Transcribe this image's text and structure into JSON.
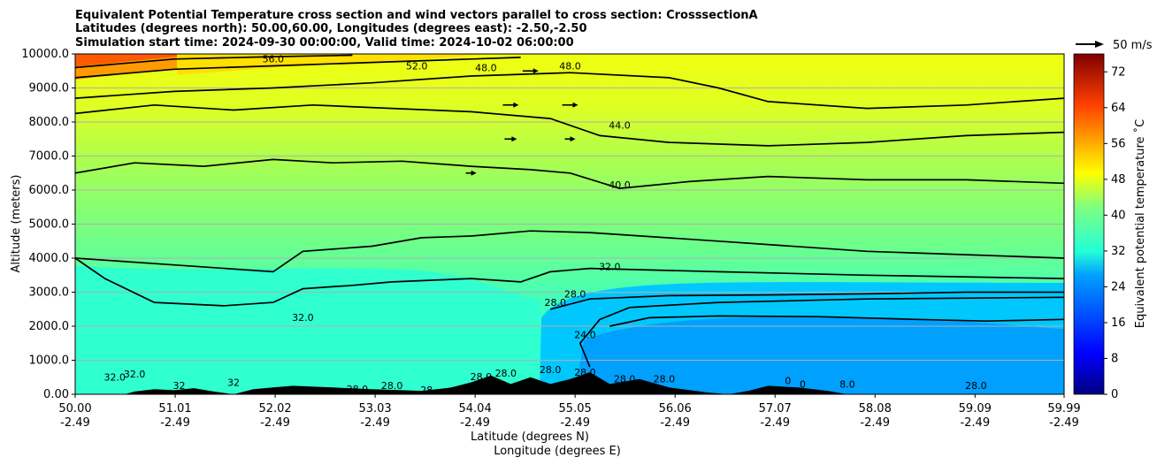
{
  "chart_data": {
    "type": "contour",
    "title_lines": [
      "Equivalent Potential Temperature cross section and wind vectors parallel to cross section: CrosssectionA",
      "Latitudes (degrees north): 50.00,60.00, Longitudes (degrees east): -2.50,-2.50",
      "Simulation start time: 2024-09-30 00:00:00, Valid time: 2024-10-02 06:00:00"
    ],
    "xlabel": "Latitude (degrees N)",
    "xlabel2": "Longitude (degrees E)",
    "ylabel": "Altitude (meters)",
    "xlim": [
      50.0,
      59.99
    ],
    "ylim": [
      0,
      10000
    ],
    "x_ticks": [
      {
        "lat": 50.0,
        "label": "50.00",
        "lon": "-2.49"
      },
      {
        "lat": 51.01,
        "label": "51.01",
        "lon": "-2.49"
      },
      {
        "lat": 52.02,
        "label": "52.02",
        "lon": "-2.49"
      },
      {
        "lat": 53.03,
        "label": "53.03",
        "lon": "-2.49"
      },
      {
        "lat": 54.04,
        "label": "54.04",
        "lon": "-2.49"
      },
      {
        "lat": 55.05,
        "label": "55.05",
        "lon": "-2.49"
      },
      {
        "lat": 56.06,
        "label": "56.06",
        "lon": "-2.49"
      },
      {
        "lat": 57.07,
        "label": "57.07",
        "lon": "-2.49"
      },
      {
        "lat": 58.08,
        "label": "58.08",
        "lon": "-2.49"
      },
      {
        "lat": 59.09,
        "label": "59.09",
        "lon": "-2.49"
      },
      {
        "lat": 59.99,
        "label": "59.99",
        "lon": "-2.49"
      }
    ],
    "y_ticks": [
      {
        "value": 0,
        "label": "0.00"
      },
      {
        "value": 1000,
        "label": "1000.0"
      },
      {
        "value": 2000,
        "label": "2000.0"
      },
      {
        "value": 3000,
        "label": "3000.0"
      },
      {
        "value": 4000,
        "label": "4000.0"
      },
      {
        "value": 5000,
        "label": "5000.0"
      },
      {
        "value": 6000,
        "label": "6000.0"
      },
      {
        "value": 7000,
        "label": "7000.0"
      },
      {
        "value": 8000,
        "label": "8000.0"
      },
      {
        "value": 9000,
        "label": "9000.0"
      },
      {
        "value": 10000,
        "label": "10000.0"
      }
    ],
    "grid": "horizontal",
    "colorbar": {
      "label": "Equivalent potential temperature ˚C",
      "min": 0,
      "max": 76,
      "step": 2,
      "ticks": [
        {
          "value": 0,
          "label": "0"
        },
        {
          "value": 8,
          "label": "8"
        },
        {
          "value": 16,
          "label": "16"
        },
        {
          "value": 24,
          "label": "24"
        },
        {
          "value": 32,
          "label": "32"
        },
        {
          "value": 40,
          "label": "40"
        },
        {
          "value": 48,
          "label": "48"
        },
        {
          "value": 56,
          "label": "56"
        },
        {
          "value": 64,
          "label": "64"
        },
        {
          "value": 72,
          "label": "72"
        }
      ]
    },
    "wind_key": {
      "label": "50 m/s",
      "value": 50
    },
    "contour_lines": [
      {
        "level": 24,
        "points": [
          [
            55.4,
            2000
          ],
          [
            55.8,
            2250
          ],
          [
            56.5,
            2300
          ],
          [
            57.5,
            2280
          ],
          [
            58.5,
            2200
          ],
          [
            59.2,
            2150
          ],
          [
            59.99,
            2200
          ]
        ]
      },
      {
        "level": 28,
        "points": [
          [
            54.8,
            2500
          ],
          [
            55.2,
            2800
          ],
          [
            56.0,
            2900
          ],
          [
            57.0,
            2920
          ],
          [
            58.0,
            2950
          ],
          [
            59.0,
            3000
          ],
          [
            59.99,
            3000
          ]
        ]
      },
      {
        "level": 28,
        "points": [
          [
            55.2,
            800
          ],
          [
            55.1,
            1500
          ],
          [
            55.3,
            2200
          ],
          [
            55.6,
            2550
          ],
          [
            56.5,
            2700
          ],
          [
            58.0,
            2800
          ],
          [
            59.99,
            2850
          ]
        ]
      },
      {
        "level": 32,
        "points": [
          [
            50.0,
            4000
          ],
          [
            50.3,
            3400
          ],
          [
            50.8,
            2700
          ],
          [
            51.5,
            2600
          ],
          [
            52.0,
            2700
          ],
          [
            52.3,
            3100
          ],
          [
            52.8,
            3200
          ],
          [
            53.2,
            3300
          ],
          [
            54.0,
            3400
          ],
          [
            54.5,
            3300
          ],
          [
            54.8,
            3600
          ],
          [
            55.2,
            3700
          ],
          [
            56.5,
            3600
          ],
          [
            58.0,
            3500
          ],
          [
            59.99,
            3400
          ]
        ]
      },
      {
        "level": 36,
        "points": [
          [
            50.0,
            4000
          ],
          [
            51.0,
            3800
          ],
          [
            52.0,
            3600
          ],
          [
            52.3,
            4200
          ],
          [
            53.0,
            4350
          ],
          [
            53.5,
            4600
          ],
          [
            54.0,
            4650
          ],
          [
            54.6,
            4800
          ],
          [
            55.2,
            4750
          ],
          [
            56.5,
            4500
          ],
          [
            58.0,
            4200
          ],
          [
            59.0,
            4100
          ],
          [
            59.99,
            4000
          ]
        ]
      },
      {
        "level": 40,
        "points": [
          [
            50.0,
            6500
          ],
          [
            50.6,
            6800
          ],
          [
            51.3,
            6700
          ],
          [
            52.0,
            6900
          ],
          [
            52.6,
            6800
          ],
          [
            53.3,
            6850
          ],
          [
            54.0,
            6700
          ],
          [
            54.6,
            6600
          ],
          [
            55.0,
            6500
          ],
          [
            55.5,
            6050
          ],
          [
            56.2,
            6250
          ],
          [
            57.0,
            6400
          ],
          [
            58.0,
            6300
          ],
          [
            59.0,
            6300
          ],
          [
            59.99,
            6200
          ]
        ]
      },
      {
        "level": 44,
        "points": [
          [
            50.0,
            8250
          ],
          [
            50.8,
            8500
          ],
          [
            51.6,
            8350
          ],
          [
            52.4,
            8500
          ],
          [
            53.2,
            8400
          ],
          [
            54.0,
            8300
          ],
          [
            54.8,
            8100
          ],
          [
            55.3,
            7600
          ],
          [
            56.0,
            7400
          ],
          [
            57.0,
            7300
          ],
          [
            58.0,
            7400
          ],
          [
            59.0,
            7600
          ],
          [
            59.99,
            7700
          ]
        ]
      },
      {
        "level": 48,
        "points": [
          [
            50.0,
            8700
          ],
          [
            51.0,
            8900
          ],
          [
            52.0,
            9000
          ],
          [
            53.0,
            9150
          ],
          [
            54.0,
            9350
          ],
          [
            55.0,
            9450
          ],
          [
            56.0,
            9300
          ],
          [
            56.5,
            9000
          ],
          [
            57.0,
            8600
          ],
          [
            58.0,
            8400
          ],
          [
            59.0,
            8500
          ],
          [
            59.99,
            8700
          ]
        ]
      },
      {
        "level": 52,
        "points": [
          [
            50.0,
            9300
          ],
          [
            51.0,
            9550
          ],
          [
            52.0,
            9650
          ],
          [
            53.0,
            9750
          ],
          [
            54.0,
            9850
          ],
          [
            54.5,
            9900
          ]
        ]
      },
      {
        "level": 56,
        "points": [
          [
            50.0,
            9600
          ],
          [
            51.0,
            9850
          ],
          [
            52.0,
            9920
          ],
          [
            52.8,
            9960
          ]
        ]
      }
    ],
    "contour_labels": [
      {
        "text": "56.0",
        "lat": 52.0,
        "alt": 9750
      },
      {
        "text": "52.0",
        "lat": 53.45,
        "alt": 9550
      },
      {
        "text": "48.0",
        "lat": 54.15,
        "alt": 9500
      },
      {
        "text": "48.0",
        "lat": 55.0,
        "alt": 9550
      },
      {
        "text": "44.0",
        "lat": 55.5,
        "alt": 7800
      },
      {
        "text": "40.0",
        "lat": 55.5,
        "alt": 6050
      },
      {
        "text": "32.0",
        "lat": 55.4,
        "alt": 3650
      },
      {
        "text": "28.0",
        "lat": 55.05,
        "alt": 2850
      },
      {
        "text": "28.0",
        "lat": 54.85,
        "alt": 2600
      },
      {
        "text": "24.0",
        "lat": 55.15,
        "alt": 1650
      },
      {
        "text": "32.0",
        "lat": 52.3,
        "alt": 2150
      },
      {
        "text": "32.0",
        "lat": 50.4,
        "alt": 400
      },
      {
        "text": "32.0",
        "lat": 50.6,
        "alt": 500
      },
      {
        "text": "32",
        "lat": 51.05,
        "alt": 150
      },
      {
        "text": "32",
        "lat": 51.6,
        "alt": 250
      },
      {
        "text": "28.0",
        "lat": 52.85,
        "alt": 50
      },
      {
        "text": "28.0",
        "lat": 53.2,
        "alt": 150
      },
      {
        "text": "28",
        "lat": 53.55,
        "alt": 20
      },
      {
        "text": "28.0",
        "lat": 54.1,
        "alt": 420
      },
      {
        "text": "28.0",
        "lat": 54.35,
        "alt": 520
      },
      {
        "text": "28.0",
        "lat": 54.8,
        "alt": 620
      },
      {
        "text": "28.0",
        "lat": 55.15,
        "alt": 550
      },
      {
        "text": "28.0",
        "lat": 55.55,
        "alt": 350
      },
      {
        "text": "28.0",
        "lat": 55.95,
        "alt": 350
      },
      {
        "text": "0",
        "lat": 57.2,
        "alt": 300
      },
      {
        "text": "0",
        "lat": 57.35,
        "alt": 200
      },
      {
        "text": "8.0",
        "lat": 57.8,
        "alt": 200
      },
      {
        "text": "28.0",
        "lat": 59.1,
        "alt": 150
      }
    ],
    "terrain": [
      [
        50.0,
        0
      ],
      [
        50.5,
        0
      ],
      [
        50.6,
        80
      ],
      [
        50.8,
        150
      ],
      [
        51.0,
        120
      ],
      [
        51.2,
        180
      ],
      [
        51.4,
        80
      ],
      [
        51.6,
        0
      ],
      [
        51.8,
        150
      ],
      [
        52.0,
        200
      ],
      [
        52.2,
        250
      ],
      [
        52.6,
        200
      ],
      [
        53.0,
        150
      ],
      [
        53.5,
        100
      ],
      [
        53.8,
        200
      ],
      [
        54.0,
        350
      ],
      [
        54.2,
        550
      ],
      [
        54.4,
        300
      ],
      [
        54.6,
        500
      ],
      [
        54.8,
        300
      ],
      [
        55.0,
        450
      ],
      [
        55.2,
        650
      ],
      [
        55.4,
        300
      ],
      [
        55.7,
        450
      ],
      [
        56.0,
        200
      ],
      [
        56.4,
        50
      ],
      [
        56.6,
        0
      ],
      [
        56.8,
        100
      ],
      [
        57.0,
        250
      ],
      [
        57.3,
        200
      ],
      [
        57.6,
        100
      ],
      [
        57.8,
        0
      ],
      [
        59.99,
        0
      ]
    ],
    "wind_vectors": [
      {
        "lat": 54.6,
        "alt": 9500,
        "u": 9
      },
      {
        "lat": 54.4,
        "alt": 8500,
        "u": 9
      },
      {
        "lat": 55.0,
        "alt": 8500,
        "u": 9
      },
      {
        "lat": 54.4,
        "alt": 7500,
        "u": 7
      },
      {
        "lat": 55.0,
        "alt": 7500,
        "u": 6
      },
      {
        "lat": 54.0,
        "alt": 6500,
        "u": 6
      }
    ]
  }
}
